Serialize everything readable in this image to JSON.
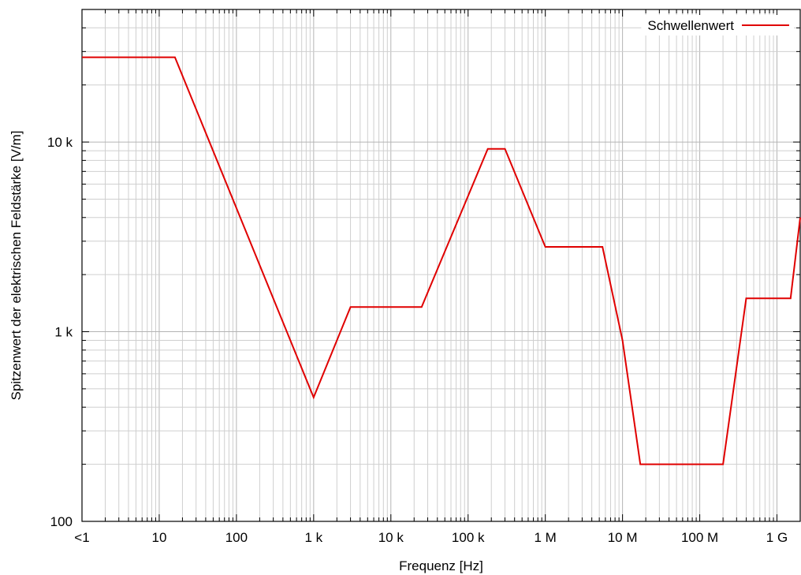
{
  "chart_data": {
    "type": "line",
    "xlabel": "Frequenz [Hz]",
    "ylabel": "Spitzenwert der elektrischen Feldstärke [V/m]",
    "xscale": "log",
    "yscale": "log",
    "xlim": [
      1,
      2000000000
    ],
    "ylim": [
      100,
      50000
    ],
    "grid": true,
    "legend_placement": "top-right",
    "x_ticks": [
      {
        "value": 1,
        "label": "<1"
      },
      {
        "value": 10,
        "label": "10"
      },
      {
        "value": 100,
        "label": "100"
      },
      {
        "value": 1000,
        "label": "1 k"
      },
      {
        "value": 10000,
        "label": "10 k"
      },
      {
        "value": 100000,
        "label": "100 k"
      },
      {
        "value": 1000000,
        "label": "1 M"
      },
      {
        "value": 10000000,
        "label": "10 M"
      },
      {
        "value": 100000000,
        "label": "100 M"
      },
      {
        "value": 1000000000,
        "label": "1 G"
      }
    ],
    "y_ticks": [
      {
        "value": 100,
        "label": "100"
      },
      {
        "value": 1000,
        "label": "1 k"
      },
      {
        "value": 10000,
        "label": "10 k"
      }
    ],
    "series": [
      {
        "name": "Schwellenwert",
        "color": "#e00000",
        "points": [
          [
            1,
            28000
          ],
          [
            16,
            28000
          ],
          [
            1000,
            450
          ],
          [
            3000,
            1350
          ],
          [
            25000,
            1350
          ],
          [
            180000,
            9200
          ],
          [
            300000,
            9200
          ],
          [
            1000000,
            2800
          ],
          [
            5500000,
            2800
          ],
          [
            10000000,
            900
          ],
          [
            17000000,
            200
          ],
          [
            200000000,
            200
          ],
          [
            400000000,
            1500
          ],
          [
            1500000000,
            1500
          ],
          [
            2000000000,
            4000
          ]
        ]
      }
    ]
  }
}
